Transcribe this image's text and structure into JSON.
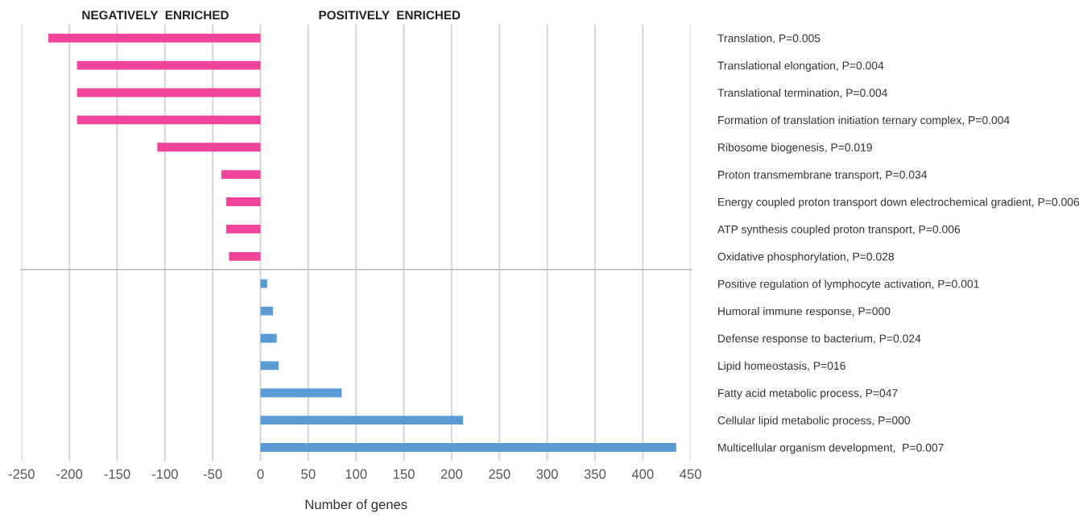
{
  "chart_data": [
    {
      "type": "bar",
      "orientation": "horizontal",
      "annotations": [
        "NEGATIVELY  ENRICHED",
        "POSITIVELY  ENRICHED"
      ],
      "categories": [
        "Translation, P=0.005",
        "Translational elongation, P=0.004",
        "Translational termination, P=0.004",
        "Formation of translation initiation ternary complex, P=0.004",
        "Ribosome biogenesis, P=0.019",
        "Proton transmembrane transport, P=0.034",
        "Energy coupled proton transport down electrochemical gradient, P=0.006",
        "ATP synthesis coupled proton transport, P=0.006",
        "Oxidative phosphorylation, P=0.028"
      ],
      "values": [
        -222,
        -192,
        -192,
        -192,
        -108,
        -41,
        -36,
        -36,
        -33
      ],
      "color": "#f0449a",
      "xlim": [
        -250,
        450
      ],
      "xticks": [
        -250,
        -200,
        -150,
        -100,
        -50,
        0,
        50,
        100,
        150,
        200,
        250,
        300,
        350,
        400,
        450
      ],
      "tick_labels": "y",
      "grid": "x"
    },
    {
      "type": "bar",
      "orientation": "horizontal",
      "xlabel": "Number of genes",
      "categories": [
        "Positive regulation of lymphocyte activation, P=0.001",
        "Humoral immune response, P=000",
        "Defense response to bacterium, P=0.024",
        "Lipid homeostasis, P=016",
        "Fatty acid metabolic process, P=047",
        "Cellular lipid metabolic process, P=000",
        "Multicellular organism development,  P=0.007"
      ],
      "values": [
        7,
        13,
        17,
        19,
        85,
        212,
        435
      ],
      "color": "#5b9bd5",
      "xlim": [
        -250,
        450
      ],
      "xticks": [
        -250,
        -200,
        -150,
        -100,
        -50,
        0,
        50,
        100,
        150,
        200,
        250,
        300,
        350,
        400,
        450
      ],
      "grid": "x"
    }
  ]
}
